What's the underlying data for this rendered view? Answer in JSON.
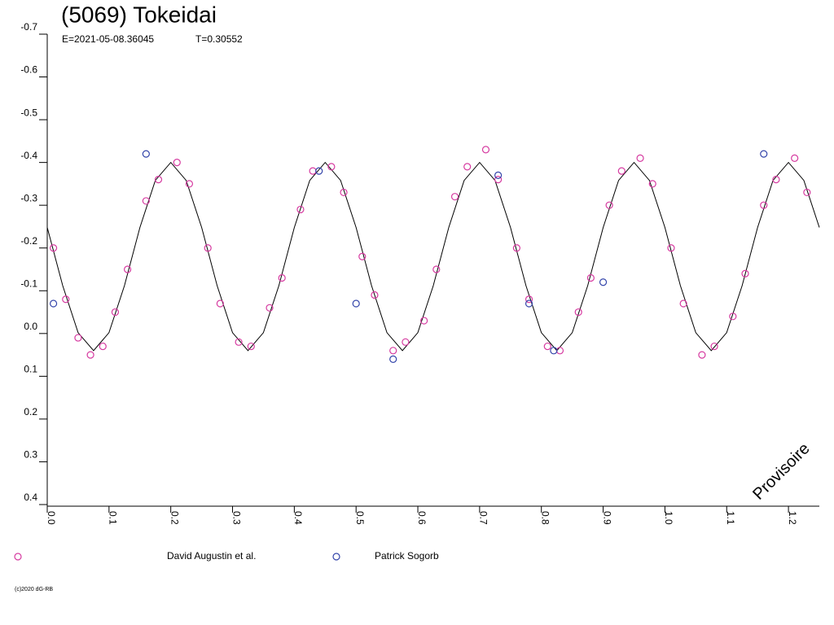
{
  "chart_data": {
    "type": "scatter",
    "title": "(5069) Tokeidai",
    "epoch": "E=2021-05-08.36045",
    "period": "T=0.30552",
    "watermark": "Provisoire",
    "credit": "(c)2020 dG-RB",
    "xlim": [
      0,
      1.25
    ],
    "ylim": [
      -0.7,
      0.4
    ],
    "y_inverted": true,
    "xticks": [
      {
        "value": 0,
        "label": "0.0"
      },
      0.1,
      0.2,
      0.3,
      0.4,
      0.5,
      0.6,
      0.7,
      0.8,
      0.9,
      {
        "value": 1,
        "label": "1.0"
      },
      1.1,
      1.2
    ],
    "yticks": [
      -0.7,
      -0.6,
      -0.5,
      -0.4,
      -0.3,
      -0.2,
      -0.1,
      {
        "value": 0,
        "label": "0.0"
      },
      0.1,
      0.2,
      0.3,
      0.4
    ],
    "series": [
      {
        "name": "David Augustin et al.",
        "color": "#d63aa0",
        "x": [
          0.01,
          0.03,
          0.05,
          0.07,
          0.09,
          0.11,
          0.13,
          0.16,
          0.18,
          0.21,
          0.23,
          0.26,
          0.28,
          0.31,
          0.33,
          0.36,
          0.38,
          0.41,
          0.43,
          0.46,
          0.48,
          0.51,
          0.53,
          0.56,
          0.58,
          0.61,
          0.63,
          0.66,
          0.68,
          0.71,
          0.73,
          0.76,
          0.78,
          0.81,
          0.83,
          0.86,
          0.88,
          0.91,
          0.93,
          0.96,
          0.98,
          1.01,
          1.03,
          1.06,
          1.08,
          1.11,
          1.13,
          1.16,
          1.18,
          1.21,
          1.23
        ],
        "values": [
          -0.2,
          -0.08,
          0.01,
          0.05,
          0.03,
          -0.05,
          -0.15,
          -0.31,
          -0.36,
          -0.4,
          -0.35,
          -0.2,
          -0.07,
          0.02,
          0.03,
          -0.06,
          -0.13,
          -0.29,
          -0.38,
          -0.39,
          -0.33,
          -0.18,
          -0.09,
          0.04,
          0.02,
          -0.03,
          -0.15,
          -0.32,
          -0.39,
          -0.43,
          -0.36,
          -0.2,
          -0.08,
          0.03,
          0.04,
          -0.05,
          -0.13,
          -0.3,
          -0.38,
          -0.41,
          -0.35,
          -0.2,
          -0.07,
          0.05,
          0.03,
          -0.04,
          -0.14,
          -0.3,
          -0.36,
          -0.41,
          -0.33
        ]
      },
      {
        "name": "Patrick Sogorb",
        "color": "#3344aa",
        "x": [
          0.01,
          0.16,
          0.44,
          0.5,
          0.56,
          0.73,
          0.78,
          0.82,
          0.9,
          1.16
        ],
        "values": [
          -0.07,
          -0.42,
          -0.38,
          -0.07,
          0.06,
          -0.37,
          -0.07,
          0.04,
          -0.12,
          -0.42
        ]
      }
    ],
    "fit": {
      "color": "#000000",
      "x": [
        0,
        0.025,
        0.05,
        0.075,
        0.1,
        0.125,
        0.15,
        0.175,
        0.2,
        0.225,
        0.25,
        0.275,
        0.3,
        0.325,
        0.35,
        0.375,
        0.4,
        0.425,
        0.45,
        0.475,
        0.5,
        0.525,
        0.55,
        0.575,
        0.6,
        0.625,
        0.65,
        0.675,
        0.7,
        0.725,
        0.75,
        0.775,
        0.8,
        0.825,
        0.85,
        0.875,
        0.9,
        0.925,
        0.95,
        0.975,
        1,
        1.025,
        1.05,
        1.075,
        1.1,
        1.125,
        1.15,
        1.175,
        1.2,
        1.225,
        1.25
      ],
      "values": [
        -0.248,
        -0.112,
        -0.002,
        0.04,
        -0.002,
        -0.112,
        -0.248,
        -0.358,
        -0.4,
        -0.358,
        -0.248,
        -0.112,
        -0.002,
        0.04,
        -0.002,
        -0.112,
        -0.248,
        -0.358,
        -0.4,
        -0.358,
        -0.248,
        -0.112,
        -0.002,
        0.04,
        -0.002,
        -0.112,
        -0.248,
        -0.358,
        -0.4,
        -0.358,
        -0.248,
        -0.112,
        -0.002,
        0.04,
        -0.002,
        -0.112,
        -0.248,
        -0.358,
        -0.4,
        -0.358,
        -0.248,
        -0.112,
        -0.002,
        0.04,
        -0.002,
        -0.112,
        -0.248,
        -0.358,
        -0.4,
        -0.358,
        -0.248
      ]
    }
  }
}
